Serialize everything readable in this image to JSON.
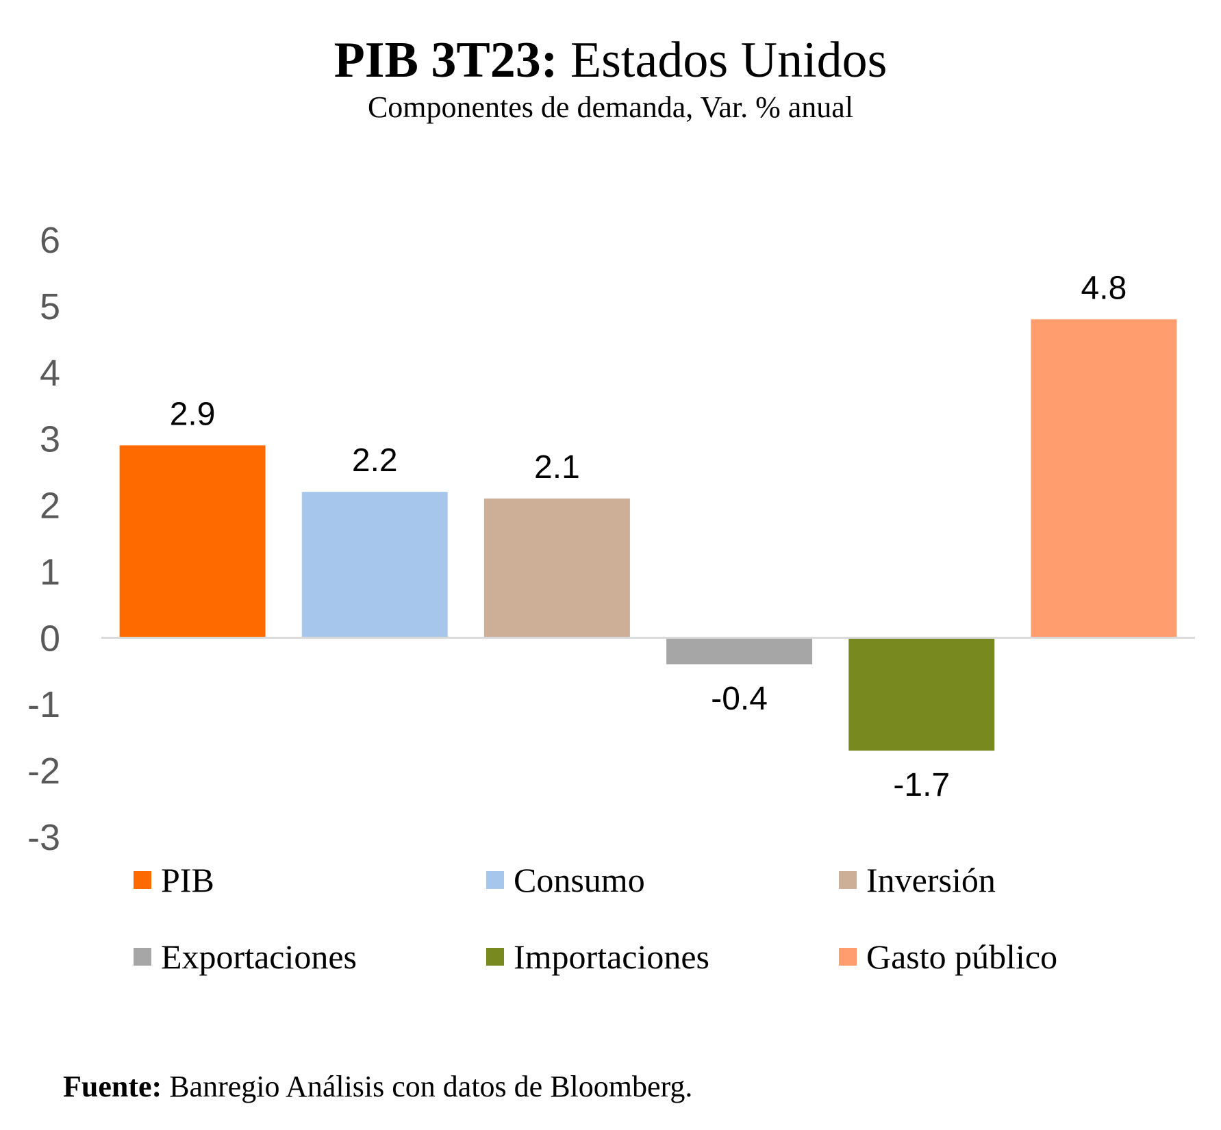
{
  "title": {
    "bold": "PIB 3T23:",
    "rest": " Estados Unidos"
  },
  "subtitle": "Componentes de demanda, Var. % anual",
  "source": {
    "bold": "Fuente:",
    "rest": " Banregio Análisis con datos de Bloomberg."
  },
  "colors": {
    "PIB": "#FF6A00",
    "Consumo": "#A7C6EC",
    "Inversion": "#CDAF98",
    "Exportaciones": "#A6A6A6",
    "Importaciones": "#77891F",
    "Gasto": "#FF9D6E",
    "axis": "#D9D9D9"
  },
  "chart_data": {
    "type": "bar",
    "title": "PIB 3T23: Estados Unidos",
    "subtitle": "Componentes de demanda, Var. % anual",
    "categories": [
      "PIB",
      "Consumo",
      "Inversión",
      "Exportaciones",
      "Importaciones",
      "Gasto público"
    ],
    "values": [
      2.9,
      2.2,
      2.1,
      -0.4,
      -1.7,
      4.8
    ],
    "data_labels": [
      "2.9",
      "2.2",
      "2.1",
      "-0.4",
      "-1.7",
      "4.8"
    ],
    "ylim": [
      -3,
      6
    ],
    "yticks": [
      6,
      5,
      4,
      3,
      2,
      1,
      0,
      -1,
      -2,
      -3
    ],
    "ytick_labels": [
      "6",
      "5",
      "4",
      "3",
      "2",
      "1",
      "0",
      "-1",
      "-2",
      "-3"
    ],
    "grid": false,
    "legend_position": "bottom",
    "legend": [
      {
        "label": "PIB",
        "color": "#FF6A00"
      },
      {
        "label": "Consumo",
        "color": "#A7C6EC"
      },
      {
        "label": "Inversión",
        "color": "#CDAF98"
      },
      {
        "label": "Exportaciones",
        "color": "#A6A6A6"
      },
      {
        "label": "Importaciones",
        "color": "#77891F"
      },
      {
        "label": "Gasto público",
        "color": "#FF9D6E"
      }
    ]
  }
}
